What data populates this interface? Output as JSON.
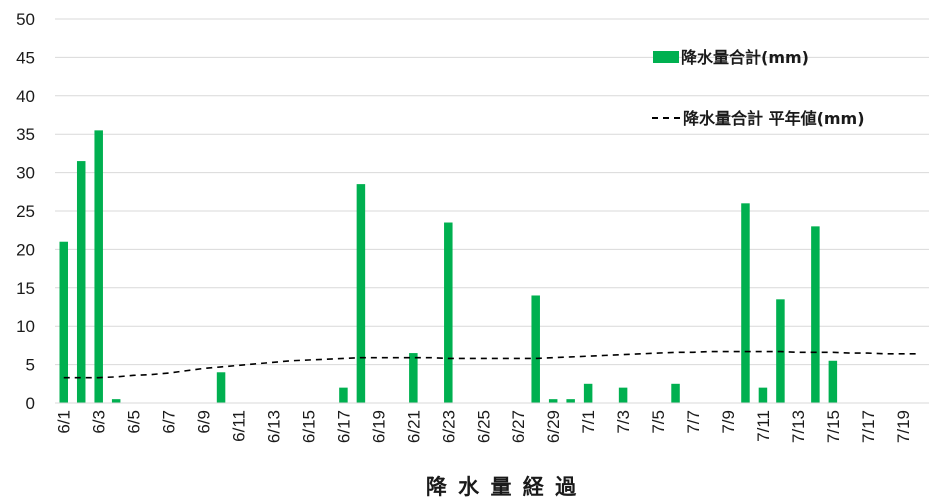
{
  "chart_data": {
    "type": "bar",
    "xlabel": "降 水 量 経 過",
    "ylabel": "",
    "ylim": [
      0,
      50
    ],
    "yticks": [
      0,
      5,
      10,
      15,
      20,
      25,
      30,
      35,
      40,
      45,
      50
    ],
    "grid": true,
    "legend_position": "top-right",
    "categories": [
      "6/1",
      "6/2",
      "6/3",
      "6/4",
      "6/5",
      "6/6",
      "6/7",
      "6/8",
      "6/9",
      "6/10",
      "6/11",
      "6/12",
      "6/13",
      "6/14",
      "6/15",
      "6/16",
      "6/17",
      "6/18",
      "6/19",
      "6/20",
      "6/21",
      "6/22",
      "6/23",
      "6/24",
      "6/25",
      "6/26",
      "6/27",
      "6/28",
      "6/29",
      "6/30",
      "7/1",
      "7/2",
      "7/3",
      "7/4",
      "7/5",
      "7/6",
      "7/7",
      "7/8",
      "7/9",
      "7/10",
      "7/11",
      "7/12",
      "7/13",
      "7/14",
      "7/15",
      "7/16",
      "7/17",
      "7/18",
      "7/19",
      "7/20"
    ],
    "xtick_labels": [
      "6/1",
      "6/3",
      "6/5",
      "6/7",
      "6/9",
      "6/11",
      "6/13",
      "6/15",
      "6/17",
      "6/19",
      "6/21",
      "6/23",
      "6/25",
      "6/27",
      "6/29",
      "7/1",
      "7/3",
      "7/5",
      "7/7",
      "7/9",
      "7/11",
      "7/13",
      "7/15",
      "7/17",
      "7/19"
    ],
    "series": [
      {
        "name": "降水量合計(mm)",
        "type": "bar",
        "color": "#00b050",
        "values": [
          21,
          31.5,
          35.5,
          0.5,
          0,
          0,
          0,
          0,
          0,
          4,
          0,
          0,
          0,
          0,
          0,
          0,
          2,
          28.5,
          0,
          0,
          6.5,
          0,
          23.5,
          0,
          0,
          0,
          0,
          14,
          0.5,
          0.5,
          2.5,
          0,
          2,
          0,
          0,
          2.5,
          0,
          0,
          0,
          26,
          2,
          13.5,
          0,
          23,
          5.5,
          0,
          0,
          0,
          0,
          0
        ]
      },
      {
        "name": "降水量合計 平年値(mm)",
        "type": "line",
        "style": "dashed",
        "color": "#000000",
        "values": [
          3.3,
          3.3,
          3.3,
          3.4,
          3.6,
          3.7,
          3.9,
          4.2,
          4.5,
          4.7,
          4.9,
          5.1,
          5.3,
          5.5,
          5.6,
          5.7,
          5.8,
          5.9,
          5.9,
          5.9,
          5.9,
          5.9,
          5.8,
          5.8,
          5.8,
          5.8,
          5.8,
          5.8,
          5.9,
          6,
          6.1,
          6.2,
          6.3,
          6.4,
          6.5,
          6.6,
          6.6,
          6.7,
          6.7,
          6.7,
          6.7,
          6.7,
          6.6,
          6.6,
          6.6,
          6.5,
          6.5,
          6.4,
          6.4,
          6.4
        ]
      }
    ]
  }
}
